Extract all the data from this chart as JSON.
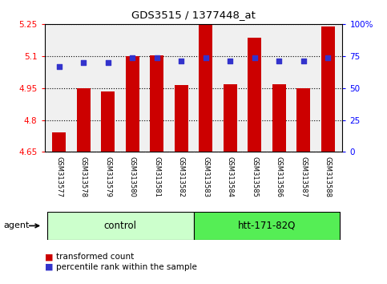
{
  "title": "GDS3515 / 1377448_at",
  "samples": [
    "GSM313577",
    "GSM313578",
    "GSM313579",
    "GSM313580",
    "GSM313581",
    "GSM313582",
    "GSM313583",
    "GSM313584",
    "GSM313585",
    "GSM313586",
    "GSM313587",
    "GSM313588"
  ],
  "bar_values": [
    4.74,
    4.95,
    4.935,
    5.1,
    5.105,
    4.965,
    5.247,
    4.967,
    5.185,
    4.966,
    4.95,
    5.238
  ],
  "percentile_values": [
    67,
    70,
    70,
    74,
    74,
    71,
    74,
    71,
    74,
    71,
    71,
    74
  ],
  "ymin": 4.65,
  "ymax": 5.25,
  "yticks": [
    4.65,
    4.8,
    4.95,
    5.1,
    5.25
  ],
  "ytick_labels": [
    "4.65",
    "4.8",
    "4.95",
    "5.1",
    "5.25"
  ],
  "right_yticks": [
    0,
    25,
    50,
    75,
    100
  ],
  "right_ytick_labels": [
    "0",
    "25",
    "50",
    "75",
    "100%"
  ],
  "bar_color": "#cc0000",
  "dot_color": "#3333cc",
  "control_label": "control",
  "htt_label": "htt-171-82Q",
  "agent_label": "agent",
  "legend_bar_label": "transformed count",
  "legend_dot_label": "percentile rank within the sample",
  "control_color": "#ccffcc",
  "htt_color": "#55ee55",
  "xtick_bg_color": "#c8c8c8",
  "plot_bg_color": "#f0f0f0",
  "figsize": [
    4.83,
    3.54
  ],
  "dpi": 100
}
